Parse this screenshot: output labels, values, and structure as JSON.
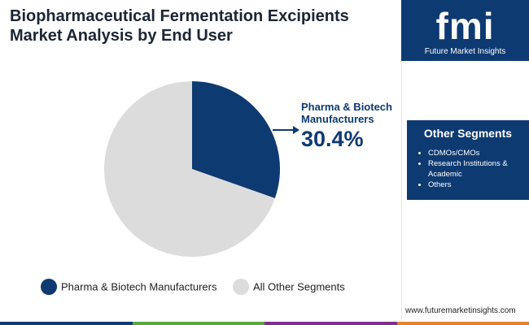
{
  "chart_data": {
    "type": "pie",
    "title": [
      "Biopharmaceutical Fermentation Excipients",
      "Market Analysis by End User"
    ],
    "categories": [
      "Pharma & Biotech Manufacturers",
      "All Other Segments"
    ],
    "values": [
      30.4,
      69.6
    ],
    "value_labels": [
      "30.4%",
      null
    ],
    "colors": [
      "#0e3a72",
      "#dcdcdc"
    ],
    "start_angle": 0,
    "direction": "clockwise",
    "legend": "bottom"
  },
  "logo": {
    "mark": "fmi",
    "name": "Future Market Insights"
  },
  "sidebar": {
    "title": "Other Segments",
    "items": [
      "CDMOs/CMOs",
      "Research Institutions & Academic",
      "Others"
    ]
  },
  "footer": {
    "url": "www.futuremarketinsights.com"
  }
}
